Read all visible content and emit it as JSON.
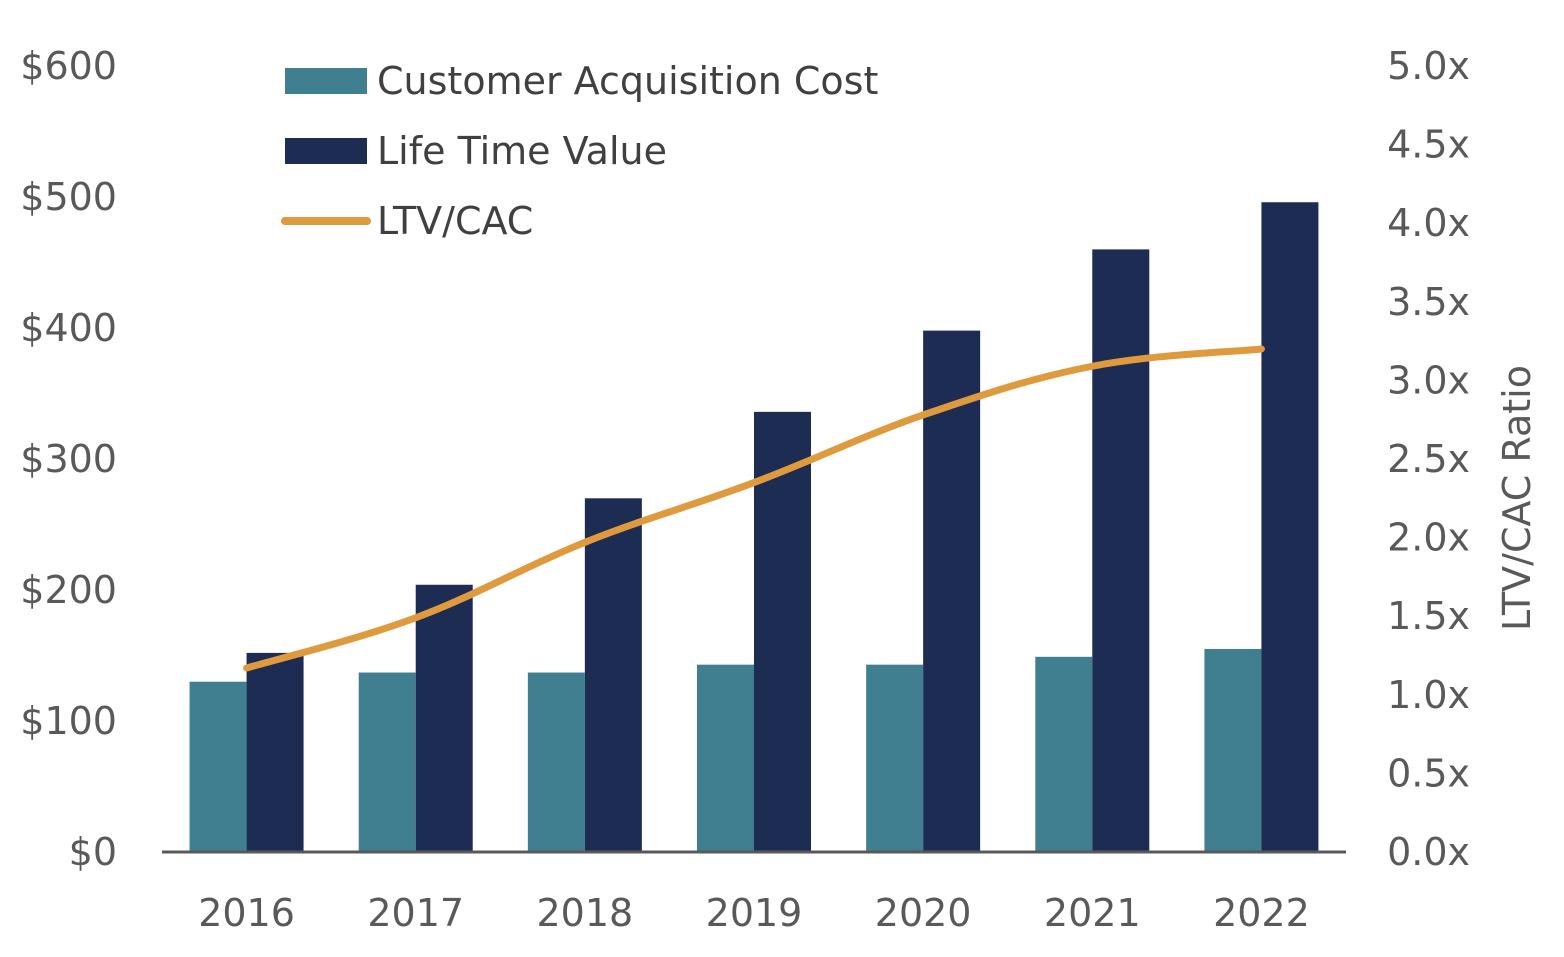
{
  "chart_data": {
    "type": "bar",
    "categories": [
      "2016",
      "2017",
      "2018",
      "2019",
      "2020",
      "2021",
      "2022"
    ],
    "series": [
      {
        "name": "Customer Acquisition Cost",
        "kind": "bar",
        "axis": "left",
        "color": "#3F7F90",
        "values": [
          130,
          137,
          137,
          143,
          143,
          149,
          155
        ]
      },
      {
        "name": "Life Time Value",
        "kind": "bar",
        "axis": "left",
        "color": "#1C2C52",
        "values": [
          152,
          204,
          270,
          336,
          398,
          460,
          496
        ]
      },
      {
        "name": "LTV/CAC",
        "kind": "line",
        "axis": "right",
        "color": "#E09A3E",
        "values": [
          1.17,
          1.49,
          1.97,
          2.35,
          2.78,
          3.09,
          3.2
        ]
      }
    ],
    "y_left": {
      "ylim": [
        0,
        600
      ],
      "ticks": [
        "$0",
        "$100",
        "$200",
        "$300",
        "$400",
        "$500",
        "$600"
      ],
      "label": ""
    },
    "y_right": {
      "ylim": [
        0,
        5
      ],
      "ticks": [
        "0.0x",
        "0.5x",
        "1.0x",
        "1.5x",
        "2.0x",
        "2.5x",
        "3.0x",
        "3.5x",
        "4.0x",
        "4.5x",
        "5.0x"
      ],
      "label": "LTV/CAC Ratio"
    },
    "xlabel": "",
    "grid": false,
    "legend_position": "top-left",
    "colors": {
      "tick_text": "#595959",
      "axis_line": "#595959",
      "legend_text": "#404040"
    }
  }
}
